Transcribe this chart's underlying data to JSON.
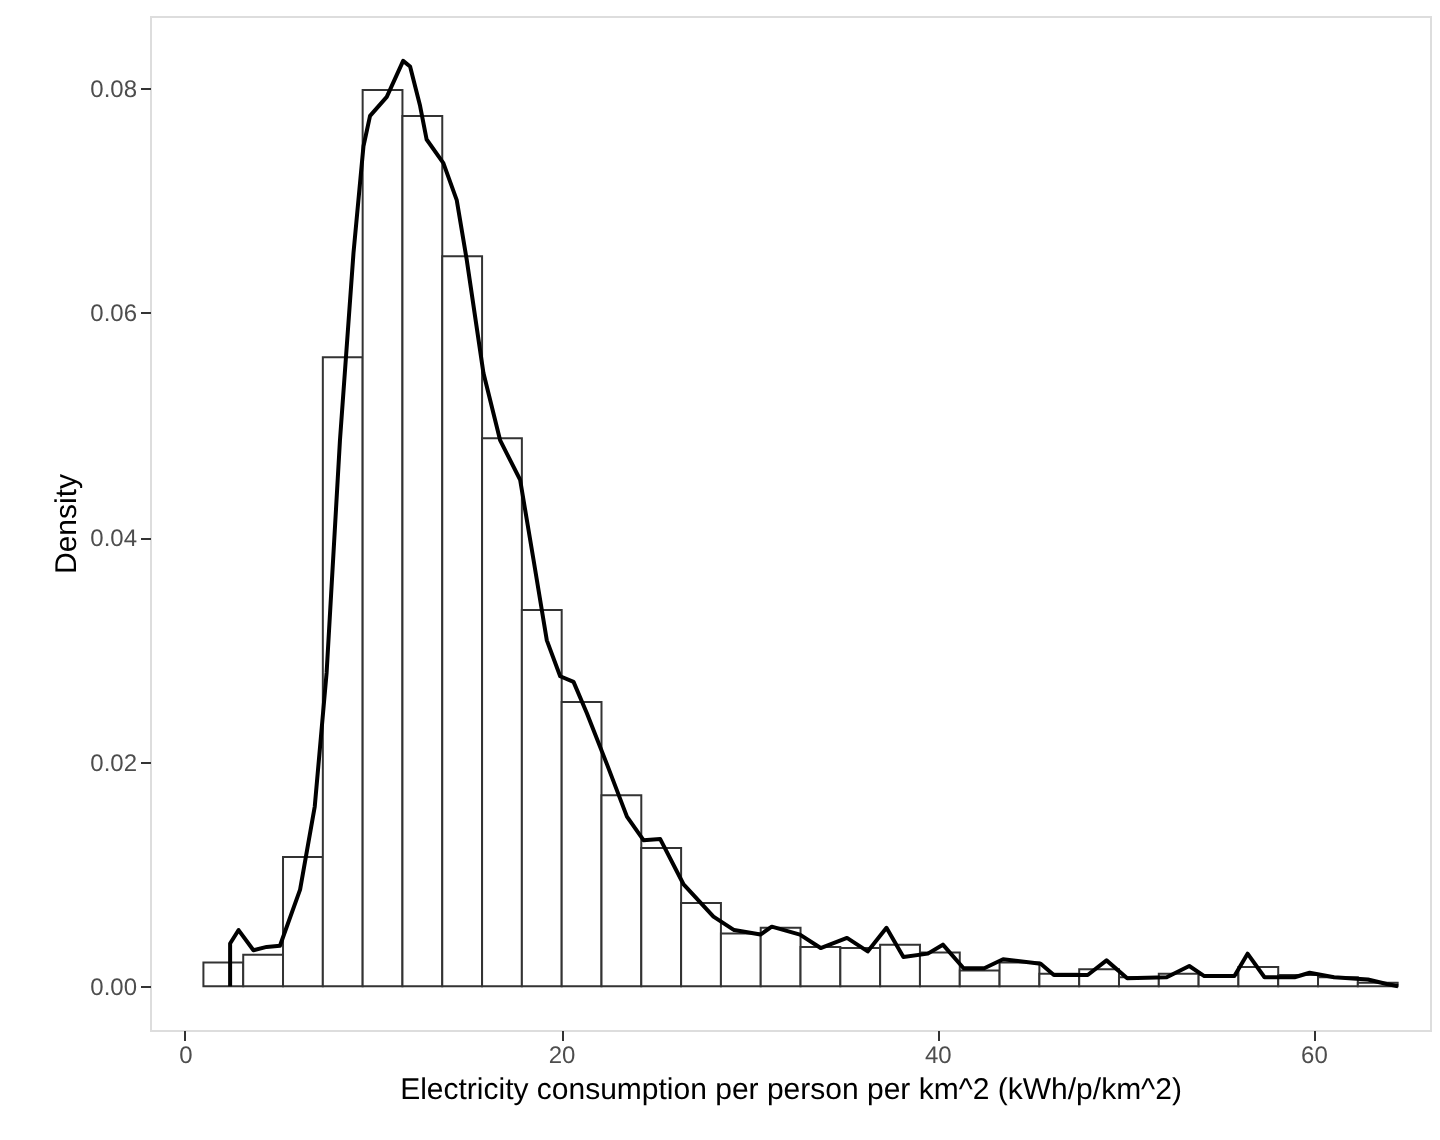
{
  "chart_data": {
    "type": "histogram",
    "xlabel": "Electricity consumption per person per km^2 (kWh/p/km^2)",
    "ylabel": "Density",
    "bins": [
      0.98,
      3.097,
      5.213,
      7.33,
      9.447,
      11.563,
      13.68,
      15.797,
      17.913,
      20.03,
      22.147,
      24.263,
      26.38,
      28.497,
      30.613,
      32.73,
      34.847,
      36.963,
      39.08,
      41.197,
      43.313,
      45.43,
      47.547,
      49.663,
      51.78,
      53.897,
      56.013,
      58.13,
      60.247,
      62.363,
      64.48
    ],
    "series": [
      {
        "color": "#ffffff",
        "values": [
          0.0021,
          0.0028,
          0.0115,
          0.056,
          0.0798,
          0.0775,
          0.065,
          0.0488,
          0.0335,
          0.0253,
          0.017,
          0.0123,
          0.0074,
          0.0047,
          0.0052,
          0.0035,
          0.0034,
          0.0037,
          0.003,
          0.0014,
          0.0021,
          0.0011,
          0.0015,
          0.0008,
          0.0011,
          0.001,
          0.0017,
          0.001,
          0.0008,
          0.0003
        ]
      },
      {
        "type": "line",
        "color": "#000000",
        "x": [
          2.4,
          2.4,
          2.85,
          3.64,
          4.34,
          5.05,
          6.12,
          6.9,
          7.53,
          8.24,
          8.96,
          9.49,
          9.84,
          10.73,
          11.6,
          11.97,
          12.5,
          12.85,
          13.74,
          14.45,
          14.98,
          15.87,
          16.76,
          17.82,
          18.53,
          19.24,
          19.95,
          20.66,
          21.37,
          22.43,
          23.5,
          24.38,
          25.27,
          26.5,
          28.1,
          29.2,
          30.6,
          31.2,
          32.7,
          33.8,
          35.2,
          36.3,
          37.3,
          38.2,
          39.5,
          40.3,
          41.4,
          42.5,
          43.5,
          45.5,
          46.2,
          48.0,
          49.0,
          50.1,
          52.2,
          53.4,
          54.2,
          55.8,
          56.5,
          57.4,
          59.0,
          59.8,
          61.1,
          62.9,
          63.9,
          64.5
        ],
        "values": [
          0,
          0.0038,
          0.005,
          0.0032,
          0.0035,
          0.0036,
          0.0086,
          0.016,
          0.0279,
          0.0486,
          0.0653,
          0.0748,
          0.0775,
          0.0792,
          0.0824,
          0.0819,
          0.0784,
          0.0754,
          0.0733,
          0.07,
          0.0647,
          0.0546,
          0.0486,
          0.0451,
          0.038,
          0.0308,
          0.0276,
          0.0271,
          0.0243,
          0.0198,
          0.0151,
          0.013,
          0.0131,
          0.0091,
          0.0062,
          0.005,
          0.0046,
          0.0053,
          0.0046,
          0.0034,
          0.0043,
          0.0031,
          0.0052,
          0.0026,
          0.0029,
          0.0037,
          0.0016,
          0.0016,
          0.0024,
          0.002,
          0.001,
          0.001,
          0.0023,
          0.0007,
          0.0008,
          0.0018,
          0.0009,
          0.0009,
          0.0029,
          0.0008,
          0.0008,
          0.0012,
          0.0008,
          0.0006,
          0.0002,
          0
        ]
      }
    ],
    "xlim": [
      -1.86,
      66.2
    ],
    "xticks": [
      0,
      20,
      40,
      60
    ],
    "ylim": [
      -0.0039,
      0.0864
    ],
    "yticks": [
      {
        "value": 0,
        "label": "0.00"
      },
      {
        "value": 0.02,
        "label": "0.02"
      },
      {
        "value": 0.04,
        "label": "0.04"
      },
      {
        "value": 0.06,
        "label": "0.06"
      },
      {
        "value": 0.08,
        "label": "0.08"
      }
    ],
    "grid": false
  }
}
